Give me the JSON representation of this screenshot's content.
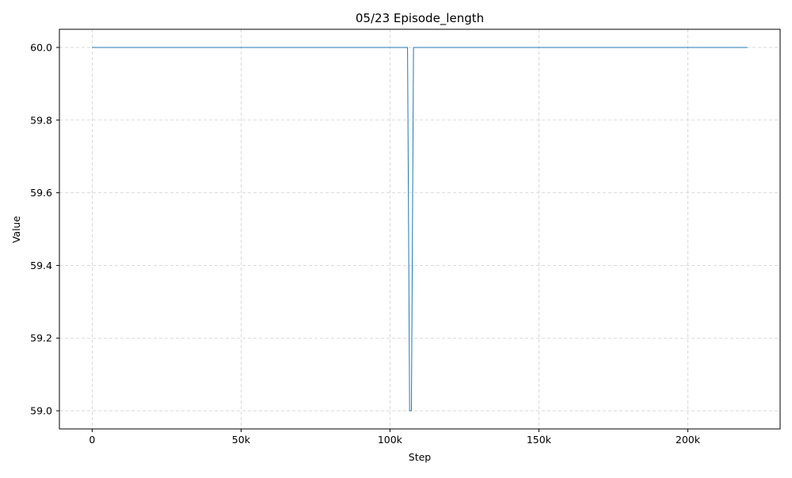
{
  "chart_data": {
    "type": "line",
    "title": "05/23  Episode_length",
    "xlabel": "Step",
    "ylabel": "Value",
    "xlim": [
      -11000,
      231000
    ],
    "ylim": [
      58.95,
      60.05
    ],
    "x_ticks": [
      0,
      50000,
      100000,
      150000,
      200000
    ],
    "x_tick_labels": [
      "0",
      "50k",
      "100k",
      "150k",
      "200k"
    ],
    "y_ticks": [
      59.0,
      59.2,
      59.4,
      59.6,
      59.8,
      60.0
    ],
    "y_tick_labels": [
      "59.0",
      "59.2",
      "59.4",
      "59.6",
      "59.8",
      "60.0"
    ],
    "grid": true,
    "legend": false,
    "colors": {
      "line": "#1f77b4",
      "grid": "#d0d0d0",
      "axes": "#000000"
    },
    "series": [
      {
        "x": [
          0,
          105900,
          106600,
          107200,
          107900,
          220000
        ],
        "y": [
          60.0,
          60.0,
          59.0,
          59.0,
          60.0,
          60.0
        ]
      }
    ]
  }
}
